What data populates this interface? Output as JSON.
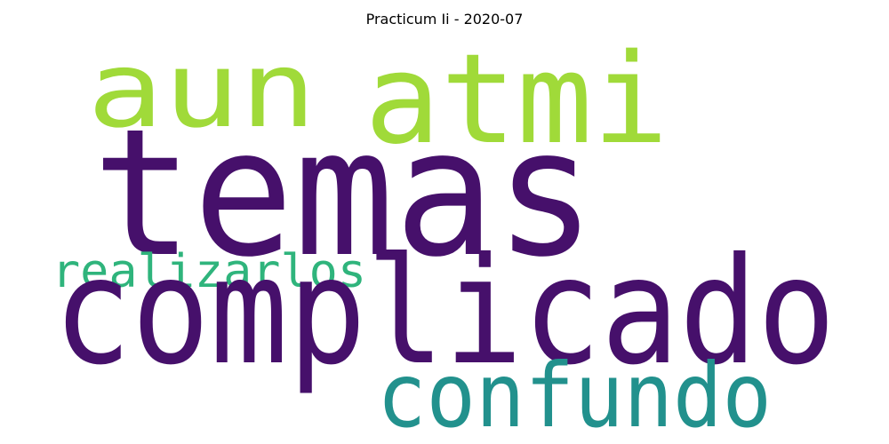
{
  "title": "Practicum Ii - 2020-07",
  "words": [
    {
      "text": "aun",
      "color": "#a0da39"
    },
    {
      "text": "atmi",
      "color": "#a0da39"
    },
    {
      "text": "temas",
      "color": "#46106b"
    },
    {
      "text": "realizarlos",
      "color": "#2fb47c"
    },
    {
      "text": "complicado",
      "color": "#46106b"
    },
    {
      "text": "confundo",
      "color": "#22918d"
    }
  ]
}
